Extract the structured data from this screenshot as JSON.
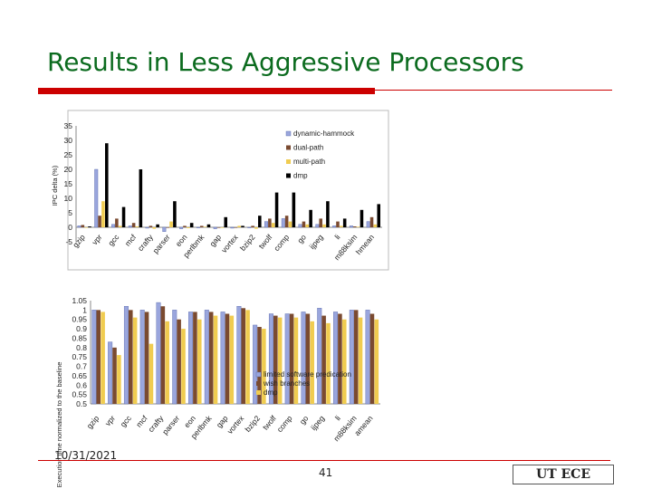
{
  "slide": {
    "title": "Results in Less Aggressive Processors",
    "date": "10/31/2021",
    "page_number": "41",
    "logo_text": "UT ECE"
  },
  "colors": {
    "title": "#0b6b1e",
    "accent_red": "#cc0000",
    "dynamic_hammock": "#9aa6dd",
    "dual_path": "#7a4a30",
    "multi_path": "#f0cc50",
    "dmp": "#000000",
    "limited_software": "#9aa6dd",
    "wish_branches": "#7a4a30"
  },
  "chart_data": [
    {
      "type": "bar",
      "ylabel": "IPC delta (%)",
      "ylim": [
        -5,
        35
      ],
      "yticks": [
        "35",
        "30",
        "25",
        "20",
        "15",
        "10",
        "5",
        "0",
        "-5"
      ],
      "grid": false,
      "legend_position": "top-right",
      "categories": [
        "gzip",
        "vpr",
        "gcc",
        "mcf",
        "crafty",
        "parser",
        "eon",
        "perlbmk",
        "gap",
        "vortex",
        "bzip2",
        "twolf",
        "comp",
        "go",
        "ijpeg",
        "li",
        "m88ksim",
        "hmean"
      ],
      "series": [
        {
          "name": "dynamic-hammock",
          "color": "#9aa6dd",
          "values": [
            0.5,
            20,
            1,
            0.5,
            -0.3,
            -1.5,
            -0.5,
            0,
            -0.5,
            -0.3,
            0,
            2,
            3,
            1,
            1,
            0.5,
            0.5,
            2
          ]
        },
        {
          "name": "dual-path",
          "color": "#7a4a30",
          "values": [
            0.8,
            4,
            3,
            1.5,
            0.5,
            0,
            0.5,
            0.5,
            0,
            0,
            0.5,
            3,
            4,
            2,
            3,
            2,
            0.3,
            3.5
          ]
        },
        {
          "name": "multi-path",
          "color": "#f0cc50",
          "values": [
            0,
            9,
            0.5,
            0.3,
            -0.5,
            2,
            -0.3,
            0.2,
            -0.2,
            0.5,
            -0.5,
            1.5,
            2,
            1,
            1,
            0.5,
            0.2,
            1
          ]
        },
        {
          "name": "dmp",
          "color": "#000000",
          "values": [
            0.3,
            29,
            7,
            20,
            1,
            9,
            1.5,
            1,
            3.5,
            0.5,
            4,
            12,
            12,
            6,
            9,
            3,
            6,
            8
          ]
        }
      ]
    },
    {
      "type": "bar",
      "ylabel": "Execution time normalized to the baseline",
      "ylim": [
        0.5,
        1.05
      ],
      "yticks": [
        "1.05",
        "1",
        "0.95",
        "0.9",
        "0.85",
        "0.8",
        "0.75",
        "0.7",
        "0.65",
        "0.6",
        "0.55",
        "0.5"
      ],
      "grid": false,
      "legend_position": "bottom-right",
      "categories": [
        "gzip",
        "vpr",
        "gcc",
        "mcf",
        "crafty",
        "parser",
        "eon",
        "perlbmk",
        "gap",
        "vortex",
        "bzip2",
        "twolf",
        "comp",
        "go",
        "ijpeg",
        "li",
        "m88ksim",
        "amean"
      ],
      "series": [
        {
          "name": "limited software predication",
          "color": "#9aa6dd",
          "values": [
            1.0,
            0.83,
            1.02,
            1.0,
            1.04,
            1.0,
            0.99,
            1.0,
            0.99,
            1.02,
            0.92,
            0.98,
            0.98,
            0.99,
            1.01,
            0.99,
            1.0,
            1.0
          ]
        },
        {
          "name": "wish branches",
          "color": "#7a4a30",
          "values": [
            1.0,
            0.8,
            1.0,
            0.99,
            1.02,
            0.95,
            0.99,
            0.99,
            0.98,
            1.01,
            0.91,
            0.97,
            0.98,
            0.98,
            0.97,
            0.98,
            1.0,
            0.98
          ]
        },
        {
          "name": "dmp",
          "color": "#f0cc50",
          "values": [
            0.99,
            0.76,
            0.96,
            0.82,
            0.94,
            0.9,
            0.95,
            0.97,
            0.97,
            1.0,
            0.9,
            0.96,
            0.96,
            0.94,
            0.93,
            0.95,
            0.96,
            0.95
          ]
        }
      ]
    }
  ]
}
